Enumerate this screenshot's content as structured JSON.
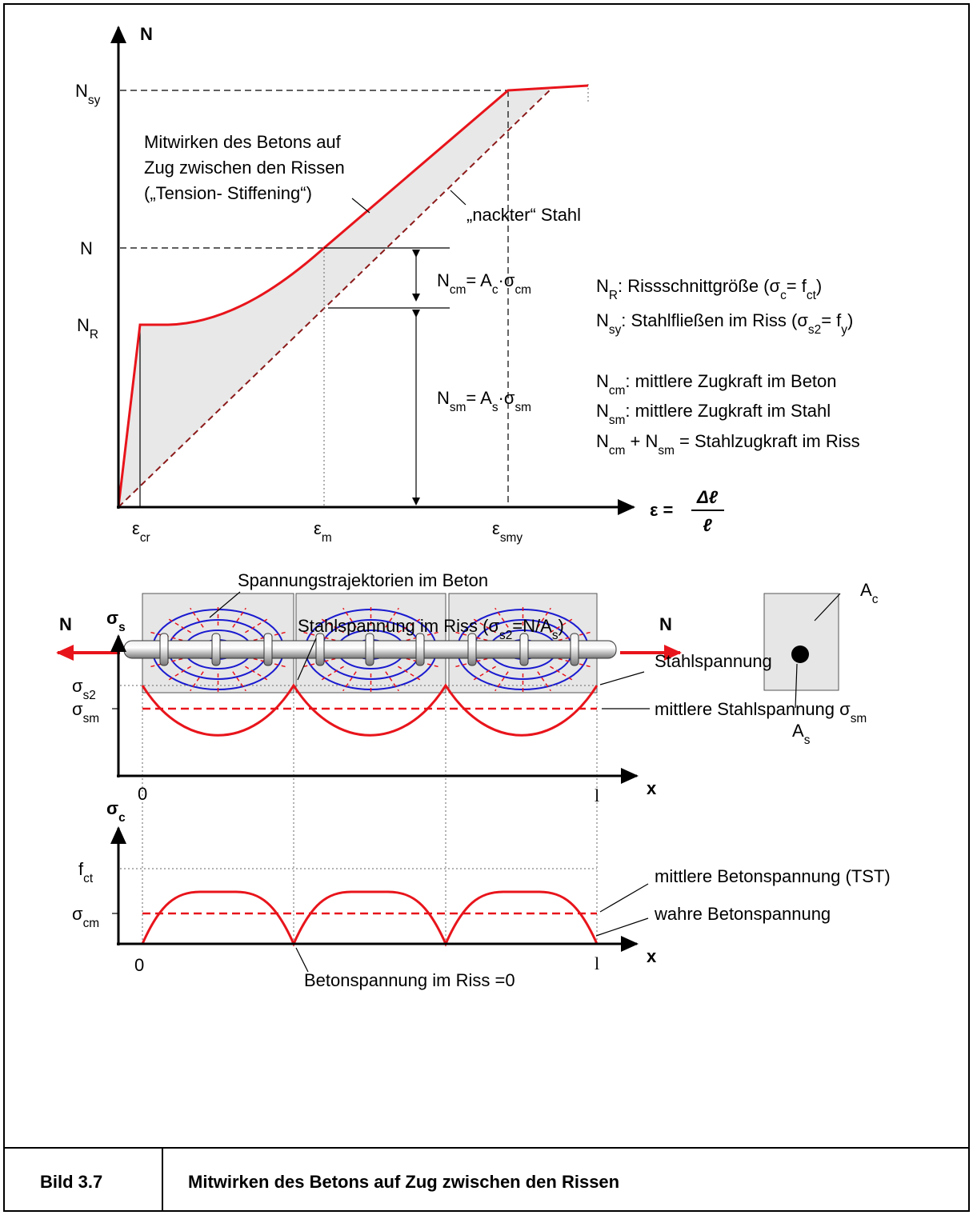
{
  "top_chart": {
    "y_axis": "N",
    "x_axis": {
      "lhs": "ε =",
      "num": "Δℓ",
      "den": "ℓ"
    },
    "y_labels": [
      [
        "N",
        "sy"
      ],
      [
        "N"
      ],
      [
        "N",
        "R"
      ]
    ],
    "x_labels": [
      [
        "ε",
        "cr"
      ],
      [
        "ε",
        "m"
      ],
      [
        "ε",
        "smy"
      ]
    ],
    "annotation": [
      "Mitwirken des Betons auf",
      "Zug zwischen den Rissen",
      "(„Tension- Stiffening“)"
    ],
    "steel_label": "„nackter“ Stahl",
    "n_cm": [
      "N",
      "cm",
      "= A",
      "c",
      "·σ",
      "cm"
    ],
    "n_sm": [
      "N",
      "sm",
      "= A",
      "s",
      "·σ",
      "sm"
    ],
    "legend": [
      [
        "N",
        "R",
        ":  Rissschnittgröße  (σ",
        "c",
        "= f",
        "ct",
        ")"
      ],
      [
        "N",
        "sy",
        ":  Stahlfließen im Riss (σ",
        "s2",
        "= f",
        "y",
        ")"
      ],
      [
        "N",
        "cm",
        ": mittlere Zugkraft im Beton"
      ],
      [
        "N",
        "sm",
        ": mittlere Zugkraft im Stahl"
      ],
      [
        "N",
        "cm",
        " + N",
        "sm",
        " = Stahlzugkraft im Riss"
      ]
    ]
  },
  "member": {
    "trajectory_label": "Spannungstrajektorien im Beton",
    "force_left": "N",
    "force_right": "N",
    "area_concrete": [
      "A",
      "c"
    ],
    "area_steel": [
      "A",
      "s"
    ]
  },
  "steel_stress": {
    "y_axis": [
      "σ",
      "s"
    ],
    "y_labels": [
      [
        "σ",
        "s2"
      ],
      [
        "σ",
        "sm"
      ]
    ],
    "crack_label": [
      "Stahlspannung im Riss (σ",
      "s2",
      "=N/A",
      "s",
      ")"
    ],
    "stress_label": "Stahlspannung",
    "mean_label": [
      "mittlere Stahlspannung σ",
      "sm"
    ],
    "x_start": "0",
    "x_end": "l",
    "x_axis": "x"
  },
  "concrete_stress": {
    "y_axis": [
      "σ",
      "c"
    ],
    "y_labels": [
      [
        "f",
        "ct"
      ],
      [
        "σ",
        "cm"
      ]
    ],
    "mean_label": "mittlere Betonspannung (TST)",
    "true_label": "wahre Betonspannung",
    "crack_label": "Betonspannung im Riss =0",
    "x_start": "0",
    "x_end": "l",
    "x_axis": "x"
  },
  "footer": {
    "number": "Bild 3.7",
    "title": "Mitwirken des Betons auf Zug zwischen den Rissen"
  }
}
